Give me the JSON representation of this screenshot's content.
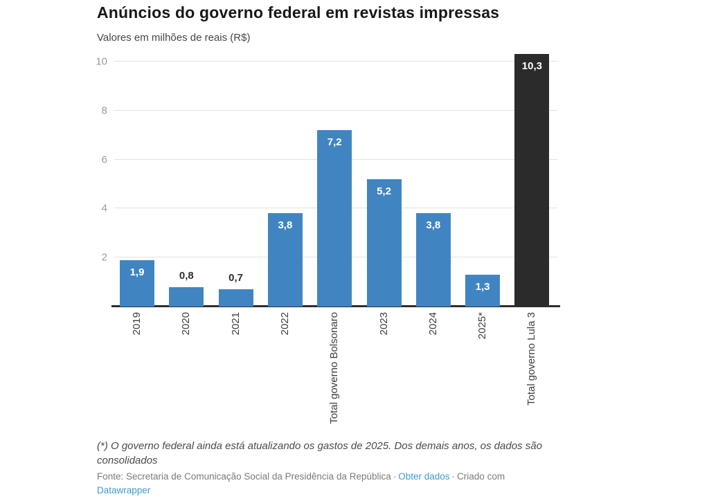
{
  "header": {
    "title": "Anúncios do governo federal em revistas impressas",
    "subtitle": "Valores em milhões de reais (R$)"
  },
  "chart_data": {
    "type": "bar",
    "title": "Anúncios do governo federal em revistas impressas",
    "subtitle": "Valores em milhões de reais (R$)",
    "xlabel": "",
    "ylabel": "Valores em milhões de reais (R$)",
    "categories": [
      "2019",
      "2020",
      "2021",
      "2022",
      "Total governo Bolsonaro",
      "2023",
      "2024",
      "2025*",
      "Total governo Lula 3"
    ],
    "values": [
      1.9,
      0.8,
      0.7,
      3.8,
      7.2,
      5.2,
      3.8,
      1.3,
      10.3
    ],
    "value_labels": [
      "1,9",
      "0,8",
      "0,7",
      "3,8",
      "7,2",
      "5,2",
      "3,8",
      "1,3",
      "10,3"
    ],
    "label_inside": [
      true,
      false,
      false,
      true,
      true,
      true,
      true,
      true,
      true
    ],
    "highlight_index": 8,
    "y_ticks": [
      2,
      4,
      6,
      8,
      10
    ],
    "ylim": [
      0,
      10.4
    ],
    "grid": true,
    "legend": "none",
    "colors": {
      "bar": "#4085c1",
      "highlight_bar": "#2b2b2b"
    }
  },
  "footer": {
    "note": "(*) O governo federal ainda está atualizando os gastos de 2025. Dos demais anos, os dados são consolidados",
    "source_prefix": "Fonte: Secretaria de Comunicação Social da Presidência da República",
    "separator": "·",
    "data_link": "Obter dados",
    "created_with": "Criado com",
    "brand_link": "Datawrapper"
  }
}
